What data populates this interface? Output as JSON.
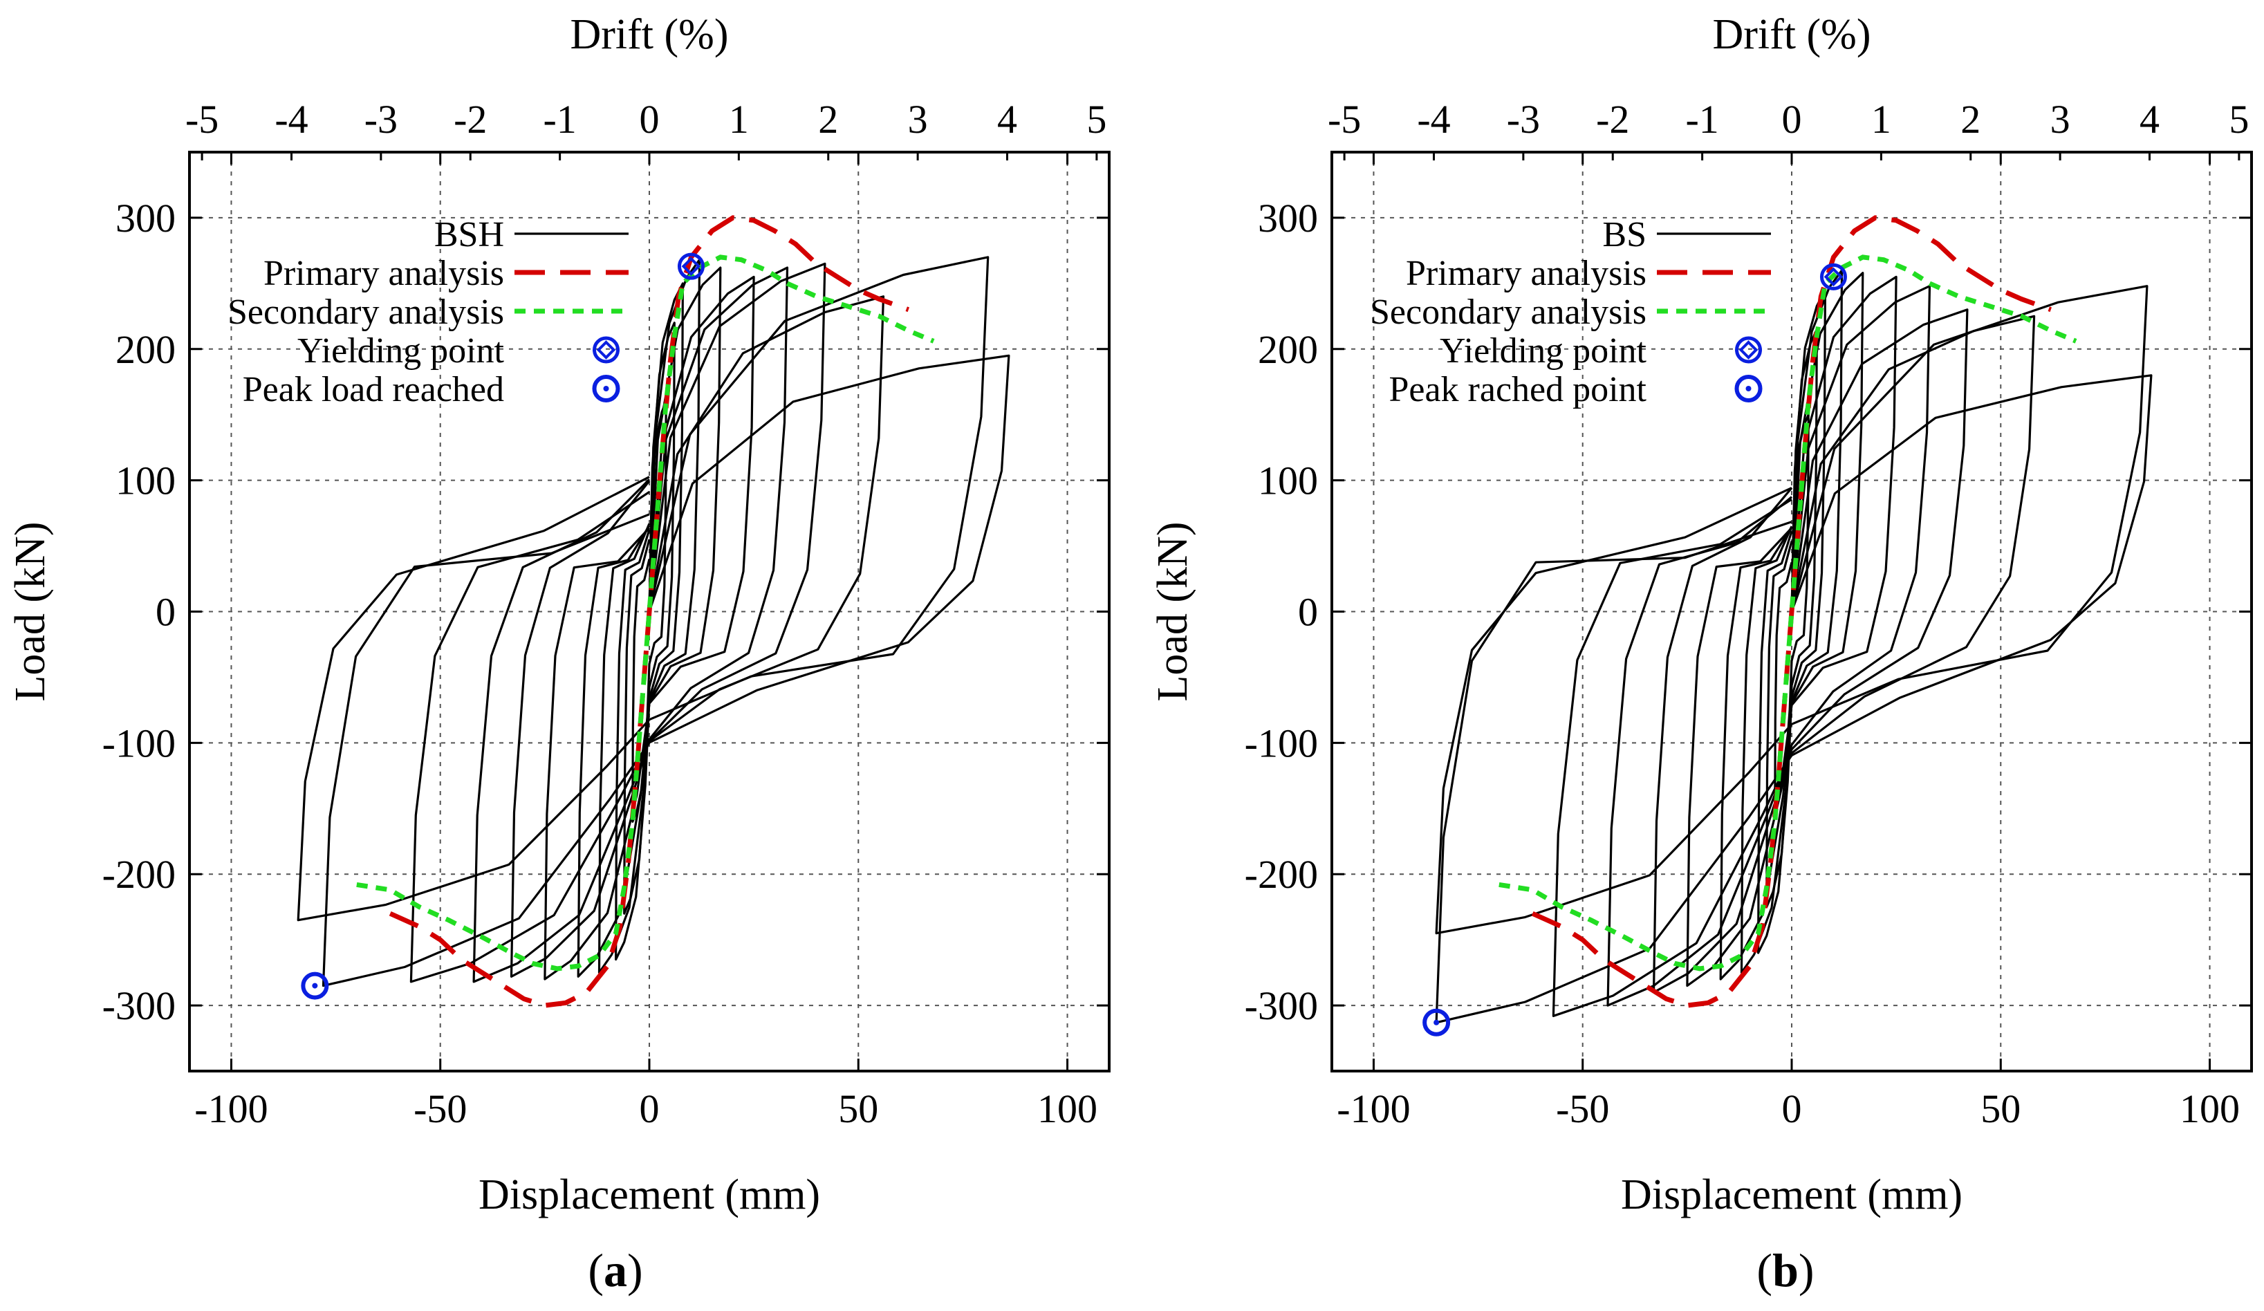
{
  "figure": {
    "panels": [
      "a",
      "b"
    ]
  },
  "chart_data": [
    {
      "type": "line",
      "panel_label": "a",
      "xlabel": "Displacement (mm)",
      "ylabel": "Load (kN)",
      "x2label": "Drift (%)",
      "xlim": [
        -110,
        110
      ],
      "ylim": [
        -350,
        350
      ],
      "x2lim": [
        -5.14,
        5.14
      ],
      "xticks": [
        -100,
        -50,
        0,
        50,
        100
      ],
      "yticks": [
        -300,
        -200,
        -100,
        0,
        100,
        200,
        300
      ],
      "x2ticks": [
        -5,
        -4,
        -3,
        -2,
        -1,
        0,
        1,
        2,
        3,
        4,
        5
      ],
      "grid": true,
      "legend_position": "top-left",
      "legend": [
        "BSH",
        "Primary analysis",
        "Secondary analysis",
        "Yielding point",
        "Peak load reached"
      ],
      "colors": {
        "hysteresis": "#000000",
        "primary": "#d40000",
        "secondary": "#22dd22",
        "markers": "#0a1fe0"
      },
      "series": [
        {
          "name": "BSH",
          "style": "solid",
          "loops": [
            {
              "peak_pos": [
                4,
                160
              ],
              "peak_neg": [
                -4,
                -160
              ]
            },
            {
              "peak_pos": [
                6,
                220
              ],
              "peak_neg": [
                -6,
                -230
              ]
            },
            {
              "peak_pos": [
                8,
                250
              ],
              "peak_neg": [
                -8,
                -265
              ]
            },
            {
              "peak_pos": [
                12,
                268
              ],
              "peak_neg": [
                -12,
                -275
              ]
            },
            {
              "peak_pos": [
                17,
                262
              ],
              "peak_neg": [
                -17,
                -278
              ]
            },
            {
              "peak_pos": [
                25,
                255
              ],
              "peak_neg": [
                -25,
                -280
              ]
            },
            {
              "peak_pos": [
                33,
                262
              ],
              "peak_neg": [
                -33,
                -278
              ]
            },
            {
              "peak_pos": [
                42,
                265
              ],
              "peak_neg": [
                -42,
                -282
              ]
            },
            {
              "peak_pos": [
                56,
                240
              ],
              "peak_neg": [
                -57,
                -282
              ]
            },
            {
              "peak_pos": [
                81,
                270
              ],
              "peak_neg": [
                -84,
                -235
              ]
            },
            {
              "peak_pos": [
                86,
                195
              ],
              "peak_neg": [
                -78,
                -285
              ]
            }
          ]
        },
        {
          "name": "Primary analysis",
          "style": "dashed",
          "x": [
            -62,
            -55,
            -50,
            -45,
            -40,
            -35,
            -30,
            -25,
            -20,
            -15,
            -10,
            -7,
            -5,
            -3,
            0,
            3,
            5,
            7,
            10,
            15,
            20,
            25,
            30,
            35,
            40,
            45,
            50,
            55,
            62
          ],
          "y": [
            -230,
            -240,
            -250,
            -265,
            -275,
            -285,
            -295,
            -300,
            -298,
            -290,
            -270,
            -240,
            -190,
            -120,
            0,
            120,
            190,
            240,
            270,
            290,
            300,
            298,
            290,
            280,
            265,
            255,
            245,
            238,
            230
          ]
        },
        {
          "name": "Secondary analysis",
          "style": "dotted",
          "x": [
            -70,
            -62,
            -55,
            -48,
            -40,
            -33,
            -28,
            -22,
            -17,
            -12,
            -8,
            -6,
            -4,
            -2,
            0,
            2,
            4,
            6,
            8,
            12,
            17,
            22,
            28,
            33,
            40,
            48,
            55,
            62,
            68
          ],
          "y": [
            -208,
            -212,
            -225,
            -235,
            -248,
            -260,
            -268,
            -272,
            -270,
            -262,
            -245,
            -210,
            -160,
            -80,
            0,
            80,
            160,
            210,
            250,
            262,
            270,
            268,
            260,
            250,
            240,
            232,
            225,
            214,
            206
          ]
        }
      ],
      "markers": [
        {
          "name": "Yielding point",
          "symbol": "diamond-in-circle",
          "x": 10,
          "y": 263
        },
        {
          "name": "Peak load reached",
          "symbol": "dot-in-circle",
          "x": -80,
          "y": -285
        }
      ]
    },
    {
      "type": "line",
      "panel_label": "b",
      "xlabel": "Displacement (mm)",
      "ylabel": "Load (kN)",
      "x2label": "Drift (%)",
      "xlim": [
        -110,
        110
      ],
      "ylim": [
        -350,
        350
      ],
      "x2lim": [
        -5.14,
        5.14
      ],
      "xticks": [
        -100,
        -50,
        0,
        50,
        100
      ],
      "yticks": [
        -300,
        -200,
        -100,
        0,
        100,
        200,
        300
      ],
      "x2ticks": [
        -5,
        -4,
        -3,
        -2,
        -1,
        0,
        1,
        2,
        3,
        4,
        5
      ],
      "grid": true,
      "legend_position": "top-left",
      "legend": [
        "BS",
        "Primary analysis",
        "Secondary analysis",
        "Yielding point",
        "Peak rached point"
      ],
      "colors": {
        "hysteresis": "#000000",
        "primary": "#d40000",
        "secondary": "#22dd22",
        "markers": "#0a1fe0"
      },
      "series": [
        {
          "name": "BS",
          "style": "solid",
          "loops": [
            {
              "peak_pos": [
                4,
                150
              ],
              "peak_neg": [
                -4,
                -150
              ]
            },
            {
              "peak_pos": [
                6,
                215
              ],
              "peak_neg": [
                -6,
                -225
              ]
            },
            {
              "peak_pos": [
                8,
                245
              ],
              "peak_neg": [
                -8,
                -260
              ]
            },
            {
              "peak_pos": [
                12,
                260
              ],
              "peak_neg": [
                -12,
                -275
              ]
            },
            {
              "peak_pos": [
                17,
                258
              ],
              "peak_neg": [
                -17,
                -280
              ]
            },
            {
              "peak_pos": [
                25,
                255
              ],
              "peak_neg": [
                -25,
                -285
              ]
            },
            {
              "peak_pos": [
                33,
                248
              ],
              "peak_neg": [
                -33,
                -290
              ]
            },
            {
              "peak_pos": [
                42,
                230
              ],
              "peak_neg": [
                -44,
                -300
              ]
            },
            {
              "peak_pos": [
                58,
                225
              ],
              "peak_neg": [
                -57,
                -308
              ]
            },
            {
              "peak_pos": [
                85,
                248
              ],
              "peak_neg": [
                -85,
                -245
              ]
            },
            {
              "peak_pos": [
                86,
                180
              ],
              "peak_neg": [
                -85,
                -313
              ]
            }
          ]
        },
        {
          "name": "Primary analysis",
          "style": "dashed",
          "x": [
            -62,
            -55,
            -50,
            -45,
            -40,
            -35,
            -30,
            -25,
            -20,
            -15,
            -10,
            -7,
            -5,
            -3,
            0,
            3,
            5,
            7,
            10,
            15,
            20,
            25,
            30,
            35,
            40,
            45,
            50,
            55,
            62
          ],
          "y": [
            -230,
            -240,
            -250,
            -265,
            -275,
            -285,
            -295,
            -300,
            -298,
            -290,
            -270,
            -240,
            -190,
            -120,
            0,
            120,
            190,
            240,
            270,
            290,
            300,
            298,
            290,
            280,
            265,
            255,
            245,
            238,
            230
          ]
        },
        {
          "name": "Secondary analysis",
          "style": "dotted",
          "x": [
            -70,
            -62,
            -55,
            -48,
            -40,
            -33,
            -28,
            -22,
            -17,
            -12,
            -8,
            -6,
            -4,
            -2,
            0,
            2,
            4,
            6,
            8,
            12,
            17,
            22,
            28,
            33,
            40,
            48,
            55,
            62,
            68
          ],
          "y": [
            -208,
            -212,
            -225,
            -235,
            -248,
            -260,
            -268,
            -272,
            -270,
            -262,
            -245,
            -210,
            -160,
            -80,
            0,
            80,
            160,
            210,
            250,
            262,
            270,
            268,
            260,
            250,
            240,
            232,
            225,
            214,
            206
          ]
        }
      ],
      "markers": [
        {
          "name": "Yielding point",
          "symbol": "diamond-in-circle",
          "x": 10,
          "y": 255
        },
        {
          "name": "Peak rached point",
          "symbol": "dot-in-circle",
          "x": -85,
          "y": -313
        }
      ]
    }
  ]
}
